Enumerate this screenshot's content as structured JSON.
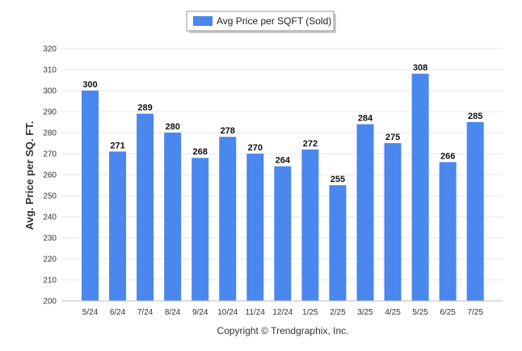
{
  "colors": {
    "bar": "#4a87ee",
    "grid": "#e6e6e6"
  },
  "legend": {
    "label": "Avg Price per SQFT (Sold)"
  },
  "footer": {
    "copyright": "Copyright © Trendgraphix, Inc."
  },
  "chart_data": {
    "type": "bar",
    "categories": [
      "5/24",
      "6/24",
      "7/24",
      "8/24",
      "9/24",
      "10/24",
      "11/24",
      "12/24",
      "1/25",
      "2/25",
      "3/25",
      "4/25",
      "5/25",
      "6/25",
      "7/25"
    ],
    "series": [
      {
        "name": "Avg Price per SQFT (Sold)",
        "values": [
          300,
          271,
          289,
          280,
          268,
          278,
          270,
          264,
          272,
          255,
          284,
          275,
          308,
          266,
          285
        ]
      }
    ],
    "ylabel": "Avg. Price per SQ. FT.",
    "xlabel": "",
    "ylim": [
      200,
      320
    ],
    "yticks": [
      200,
      210,
      220,
      230,
      240,
      250,
      260,
      270,
      280,
      290,
      300,
      310,
      320
    ],
    "grid": true,
    "legend_position": "top-center"
  }
}
